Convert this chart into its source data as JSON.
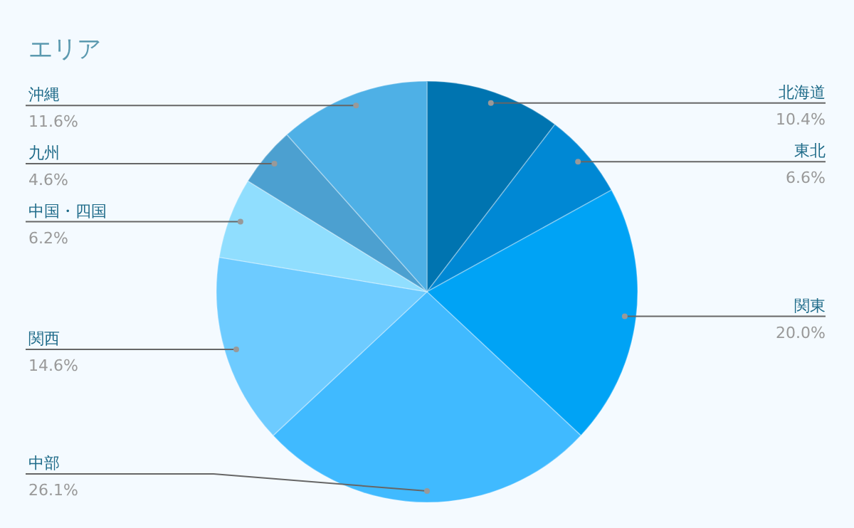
{
  "chart_data": {
    "type": "pie",
    "title": "エリア",
    "categories": [
      "北海道",
      "東北",
      "関東",
      "中部",
      "関西",
      "中国・四国",
      "九州",
      "沖縄"
    ],
    "values": [
      10.4,
      6.6,
      20.0,
      26.1,
      14.6,
      6.2,
      4.6,
      11.6
    ],
    "value_labels": [
      "10.4%",
      "6.6%",
      "20.0%",
      "26.1%",
      "14.6%",
      "6.2%",
      "4.6%",
      "11.6%"
    ],
    "colors": [
      "#0074b0",
      "#0088d4",
      "#00a3f5",
      "#40baff",
      "#6dcbff",
      "#90defe",
      "#4ca0d0",
      "#4eb0e6"
    ]
  }
}
